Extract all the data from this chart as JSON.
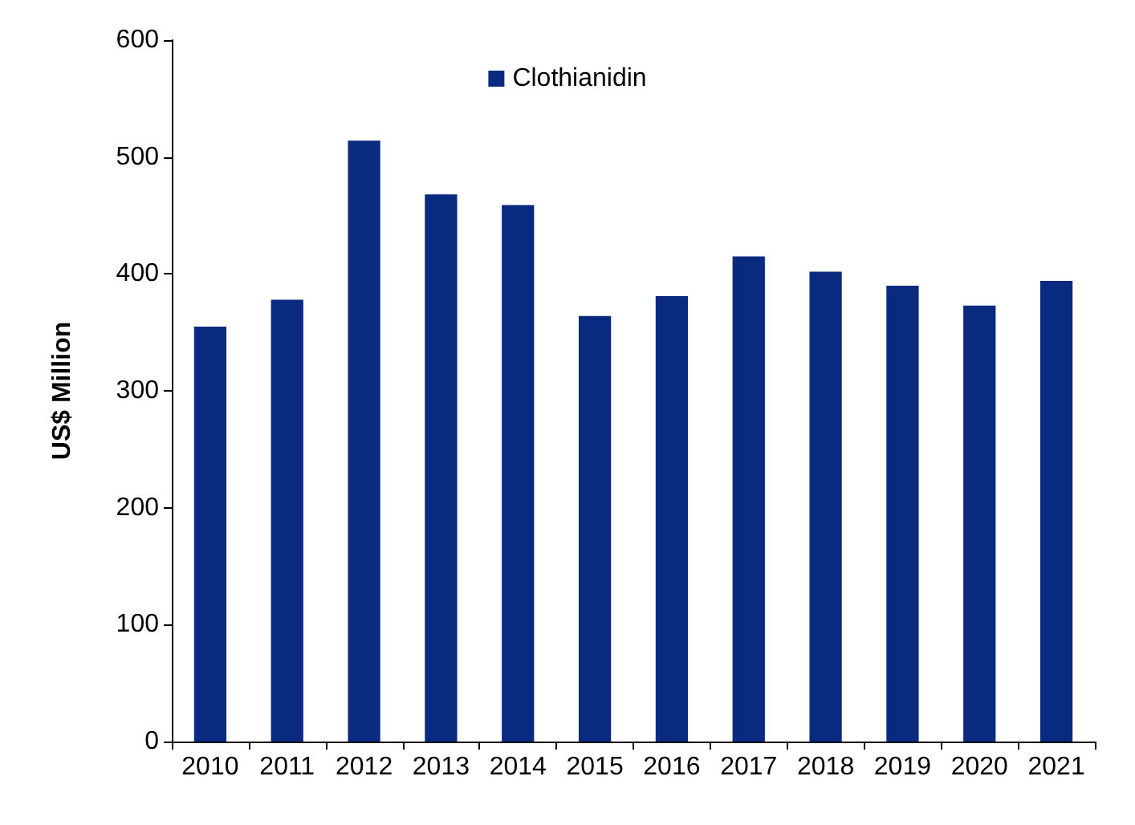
{
  "chart_data": {
    "type": "bar",
    "ylabel": "US$ Million",
    "categories": [
      "2010",
      "2011",
      "2012",
      "2013",
      "2014",
      "2015",
      "2016",
      "2017",
      "2018",
      "2019",
      "2020",
      "2021"
    ],
    "series": [
      {
        "name": "Clothianidin",
        "color": "#0a2a7f",
        "values": [
          355,
          378,
          514,
          468,
          459,
          364,
          381,
          415,
          402,
          390,
          373,
          394
        ]
      }
    ],
    "ylim": [
      0,
      600
    ],
    "yticks": [
      0,
      100,
      200,
      300,
      400,
      500,
      600
    ],
    "grid": false,
    "legend": "top"
  }
}
